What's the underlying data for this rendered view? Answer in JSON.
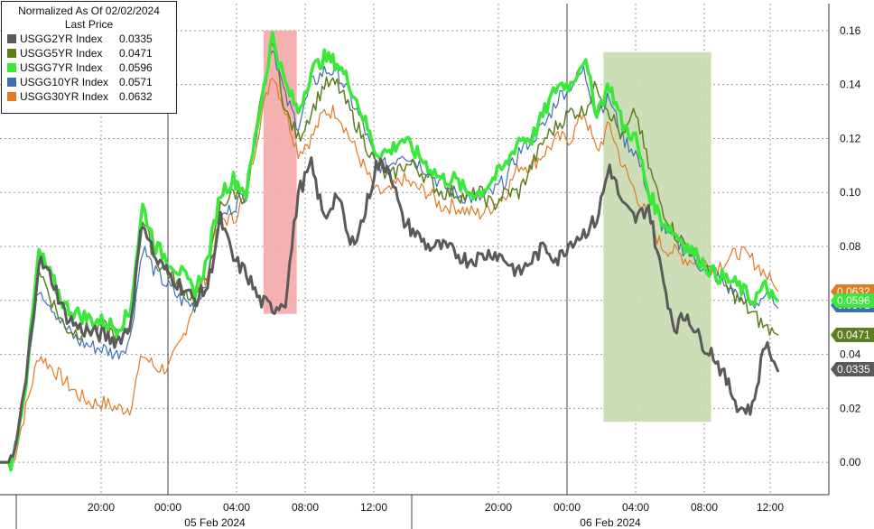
{
  "legend": {
    "title": "Normalized As Of 02/02/2024",
    "subtitle": "Last Price"
  },
  "chart_data": {
    "type": "line",
    "ylim": [
      -0.012,
      0.17
    ],
    "y_ticks": [
      "0.00",
      "0.02",
      "0.04",
      "0.06",
      "0.08",
      "0.10",
      "0.12",
      "0.14",
      "0.16"
    ],
    "x_ticks": [
      "20:00",
      "00:00",
      "04:00",
      "08:00",
      "12:00",
      "20:00",
      "00:00",
      "04:00",
      "08:00",
      "12:00"
    ],
    "date_labels": [
      "05 Feb 2024",
      "06 Feb 2024"
    ],
    "grid": true,
    "legend_position": "top-left",
    "series": [
      {
        "name": "USGG2YR Index",
        "last": "0.0335",
        "color": "#5a5a5a",
        "values": [
          0,
          0,
          0.03,
          0.075,
          0.068,
          0.055,
          0.05,
          0.048,
          0.047,
          0.045,
          0.05,
          0.09,
          0.075,
          0.07,
          0.065,
          0.06,
          0.065,
          0.09,
          0.075,
          0.07,
          0.06,
          0.057,
          0.06,
          0.1,
          0.11,
          0.09,
          0.1,
          0.08,
          0.09,
          0.11,
          0.11,
          0.09,
          0.085,
          0.08,
          0.08,
          0.078,
          0.075,
          0.076,
          0.078,
          0.075,
          0.07,
          0.075,
          0.08,
          0.075,
          0.082,
          0.085,
          0.09,
          0.11,
          0.095,
          0.09,
          0.095,
          0.07,
          0.05,
          0.055,
          0.045,
          0.04,
          0.03,
          0.02,
          0.02,
          0.045,
          0.0335
        ]
      },
      {
        "name": "USGG5YR Index",
        "last": "0.0471",
        "color": "#5d7e1e",
        "values": [
          0,
          0,
          0.03,
          0.072,
          0.06,
          0.05,
          0.048,
          0.05,
          0.05,
          0.047,
          0.05,
          0.09,
          0.075,
          0.07,
          0.065,
          0.06,
          0.07,
          0.095,
          0.1,
          0.098,
          0.13,
          0.158,
          0.13,
          0.12,
          0.13,
          0.14,
          0.14,
          0.13,
          0.12,
          0.11,
          0.105,
          0.11,
          0.11,
          0.105,
          0.1,
          0.1,
          0.098,
          0.1,
          0.095,
          0.1,
          0.1,
          0.11,
          0.12,
          0.125,
          0.13,
          0.13,
          0.14,
          0.13,
          0.12,
          0.13,
          0.11,
          0.095,
          0.085,
          0.08,
          0.075,
          0.07,
          0.065,
          0.06,
          0.055,
          0.05,
          0.0471
        ]
      },
      {
        "name": "USGG7YR Index",
        "last": "0.0596",
        "color": "#3ae83a",
        "values": [
          0,
          0,
          0.03,
          0.078,
          0.068,
          0.058,
          0.055,
          0.053,
          0.052,
          0.05,
          0.055,
          0.095,
          0.08,
          0.075,
          0.07,
          0.063,
          0.075,
          0.1,
          0.105,
          0.1,
          0.13,
          0.158,
          0.14,
          0.13,
          0.145,
          0.15,
          0.148,
          0.14,
          0.128,
          0.115,
          0.115,
          0.12,
          0.115,
          0.11,
          0.105,
          0.105,
          0.1,
          0.1,
          0.105,
          0.11,
          0.12,
          0.12,
          0.13,
          0.14,
          0.14,
          0.15,
          0.13,
          0.14,
          0.125,
          0.12,
          0.1,
          0.09,
          0.085,
          0.08,
          0.075,
          0.07,
          0.068,
          0.065,
          0.06,
          0.065,
          0.0596
        ]
      },
      {
        "name": "USGG10YR Index",
        "last": "0.0571",
        "color": "#3f6fb0",
        "values": [
          0,
          0,
          0.03,
          0.065,
          0.058,
          0.05,
          0.045,
          0.043,
          0.042,
          0.04,
          0.045,
          0.08,
          0.07,
          0.065,
          0.06,
          0.058,
          0.068,
          0.09,
          0.095,
          0.1,
          0.13,
          0.155,
          0.135,
          0.125,
          0.14,
          0.145,
          0.145,
          0.135,
          0.125,
          0.11,
          0.11,
          0.115,
          0.112,
          0.108,
          0.103,
          0.1,
          0.098,
          0.098,
          0.1,
          0.105,
          0.115,
          0.12,
          0.125,
          0.135,
          0.14,
          0.145,
          0.13,
          0.135,
          0.12,
          0.115,
          0.1,
          0.088,
          0.082,
          0.078,
          0.073,
          0.07,
          0.065,
          0.062,
          0.058,
          0.062,
          0.0571
        ]
      },
      {
        "name": "USGG30YR Index",
        "last": "0.0632",
        "color": "#e07a25",
        "values": [
          0,
          0,
          0.02,
          0.04,
          0.035,
          0.03,
          0.025,
          0.022,
          0.022,
          0.02,
          0.02,
          0.04,
          0.035,
          0.035,
          0.045,
          0.06,
          0.07,
          0.09,
          0.09,
          0.1,
          0.125,
          0.145,
          0.13,
          0.115,
          0.12,
          0.13,
          0.13,
          0.12,
          0.11,
          0.1,
          0.1,
          0.105,
          0.102,
          0.1,
          0.095,
          0.095,
          0.093,
          0.092,
          0.095,
          0.1,
          0.11,
          0.11,
          0.115,
          0.12,
          0.12,
          0.13,
          0.115,
          0.125,
          0.11,
          0.1,
          0.09,
          0.08,
          0.078,
          0.075,
          0.075,
          0.072,
          0.075,
          0.078,
          0.075,
          0.07,
          0.0632
        ]
      }
    ],
    "highlights": [
      {
        "from": 0.318,
        "to": 0.358,
        "color": "#f4a9a8"
      },
      {
        "from": 0.728,
        "to": 0.858,
        "color": "#c8d9b0"
      }
    ]
  }
}
